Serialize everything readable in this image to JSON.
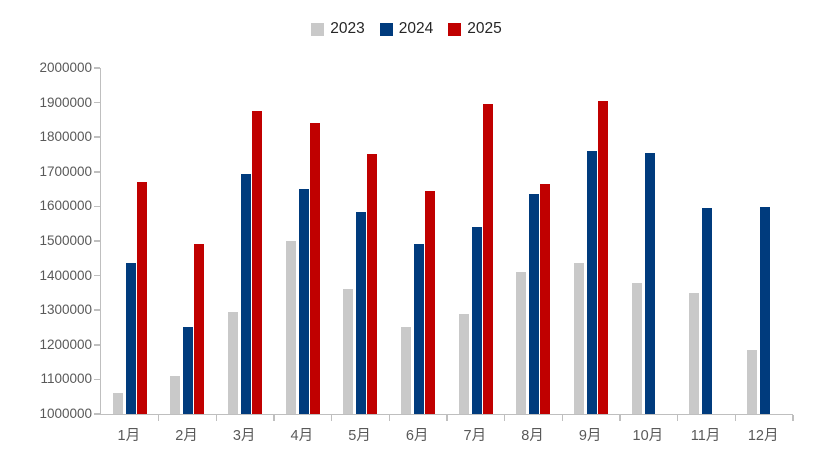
{
  "chart_data": {
    "type": "bar",
    "title": "",
    "xlabel": "",
    "ylabel": "",
    "categories": [
      "1月",
      "2月",
      "3月",
      "4月",
      "5月",
      "6月",
      "7月",
      "8月",
      "9月",
      "10月",
      "11月",
      "12月"
    ],
    "series": [
      {
        "name": "2023",
        "color": "#c9c9c9",
        "values": [
          1060000,
          1110000,
          1295000,
          1500000,
          1360000,
          1250000,
          1290000,
          1410000,
          1435000,
          1380000,
          1350000,
          1185000
        ]
      },
      {
        "name": "2024",
        "color": "#003b7d",
        "values": [
          1435000,
          1250000,
          1695000,
          1650000,
          1585000,
          1490000,
          1540000,
          1635000,
          1760000,
          1755000,
          1595000,
          1598000
        ]
      },
      {
        "name": "2025",
        "color": "#c00000",
        "values": [
          1670000,
          1490000,
          1875000,
          1840000,
          1750000,
          1645000,
          1895000,
          1665000,
          1905000,
          null,
          null,
          null
        ]
      }
    ],
    "ylim": [
      1000000,
      2000000
    ],
    "ytick_step": 100000,
    "ytick_labels": [
      "2000000",
      "1900000",
      "1800000",
      "1700000",
      "1600000",
      "1500000",
      "1400000",
      "1300000",
      "1200000",
      "1100000",
      "1000000"
    ],
    "grid": false,
    "legend_position": "top-center"
  },
  "style": {
    "axis_color": "#bfbfbf",
    "tick_label_color": "#595959",
    "legend_text_color": "#262626",
    "background": "#ffffff"
  }
}
